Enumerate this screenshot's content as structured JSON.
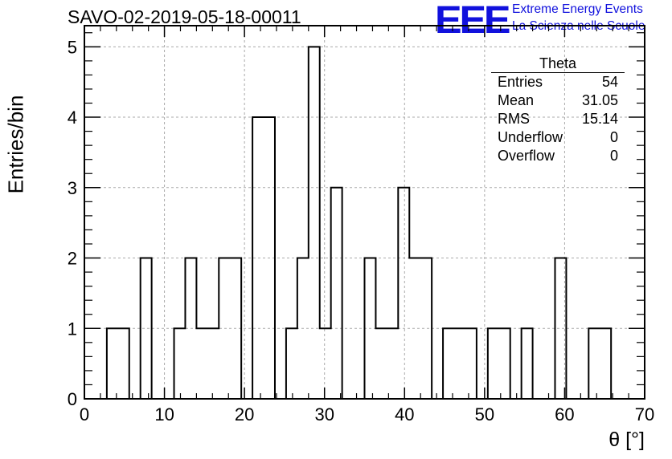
{
  "chart_data": {
    "type": "bar",
    "style": "step-histogram",
    "title": "SAVO-02-2019-05-18-00011",
    "xlabel": "θ [°]",
    "ylabel": "Entries/bin",
    "xlim": [
      0,
      70
    ],
    "ylim": [
      0,
      5.3
    ],
    "grid": true,
    "bin_width": 1.4,
    "bins": [
      {
        "x0": 2.8,
        "value": 1
      },
      {
        "x0": 4.2,
        "value": 1
      },
      {
        "x0": 7.0,
        "value": 2
      },
      {
        "x0": 11.2,
        "value": 1
      },
      {
        "x0": 12.6,
        "value": 2
      },
      {
        "x0": 14.0,
        "value": 1
      },
      {
        "x0": 15.4,
        "value": 1
      },
      {
        "x0": 16.8,
        "value": 2
      },
      {
        "x0": 18.2,
        "value": 2
      },
      {
        "x0": 21.0,
        "value": 4
      },
      {
        "x0": 22.4,
        "value": 4
      },
      {
        "x0": 25.2,
        "value": 1
      },
      {
        "x0": 26.6,
        "value": 2
      },
      {
        "x0": 28.0,
        "value": 5
      },
      {
        "x0": 29.4,
        "value": 1
      },
      {
        "x0": 30.8,
        "value": 3
      },
      {
        "x0": 35.0,
        "value": 2
      },
      {
        "x0": 36.4,
        "value": 1
      },
      {
        "x0": 37.8,
        "value": 1
      },
      {
        "x0": 39.2,
        "value": 3
      },
      {
        "x0": 40.6,
        "value": 2
      },
      {
        "x0": 42.0,
        "value": 2
      },
      {
        "x0": 44.8,
        "value": 1
      },
      {
        "x0": 46.2,
        "value": 1
      },
      {
        "x0": 47.6,
        "value": 1
      },
      {
        "x0": 50.4,
        "value": 1
      },
      {
        "x0": 51.8,
        "value": 1
      },
      {
        "x0": 54.6,
        "value": 1
      },
      {
        "x0": 58.8,
        "value": 2
      },
      {
        "x0": 63.0,
        "value": 1
      },
      {
        "x0": 64.4,
        "value": 1
      }
    ],
    "x_ticks": [
      "0",
      "10",
      "20",
      "30",
      "40",
      "50",
      "60",
      "70"
    ],
    "y_ticks": [
      "0",
      "1",
      "2",
      "3",
      "4",
      "5"
    ],
    "stats_box": {
      "title": "Theta",
      "rows": [
        {
          "label": "Entries",
          "value": "54"
        },
        {
          "label": "Mean",
          "value": "31.05"
        },
        {
          "label": "RMS",
          "value": "15.14"
        },
        {
          "label": "Underflow",
          "value": "0"
        },
        {
          "label": "Overflow",
          "value": "0"
        }
      ]
    }
  },
  "logo": {
    "mark": "EEE",
    "line1": "Extreme Energy Events",
    "line2": "La Scienza nelle Scuole",
    "color": "#1111dd"
  }
}
